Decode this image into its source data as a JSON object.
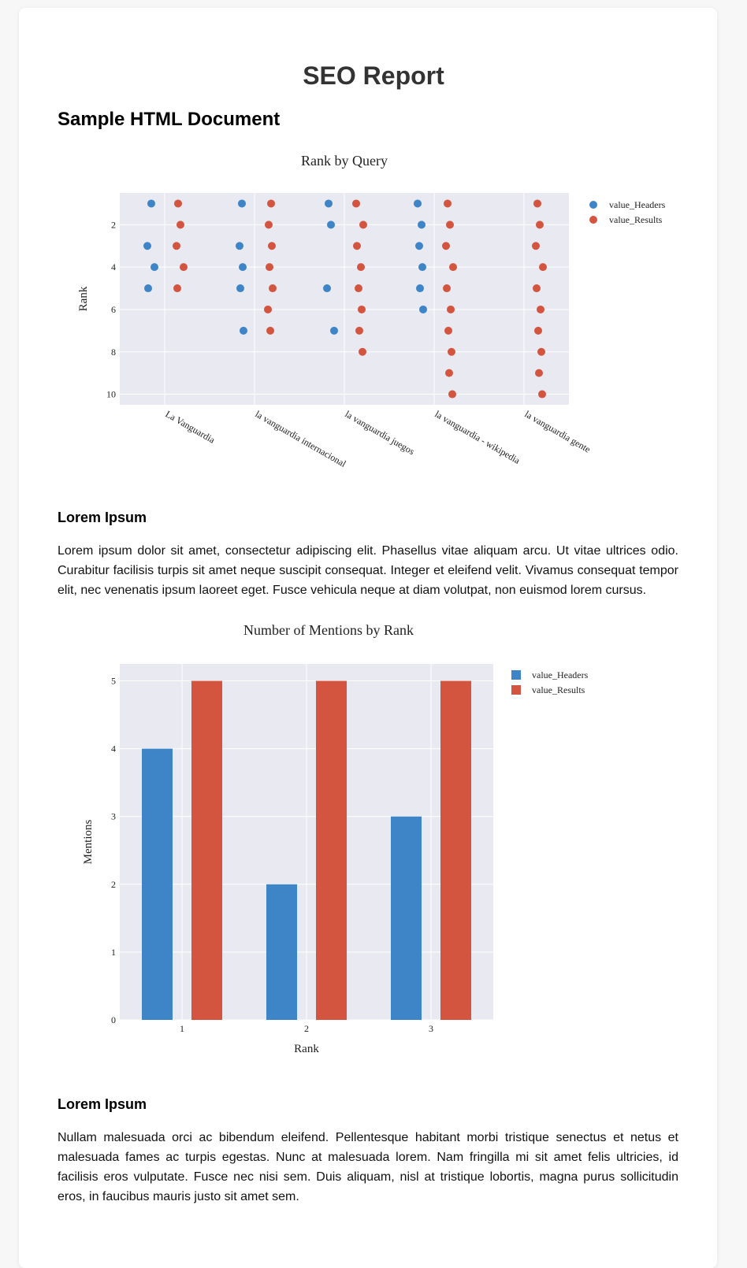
{
  "header": {
    "title": "SEO Report",
    "subtitle": "Sample HTML Document"
  },
  "chart_data": [
    {
      "type": "scatter",
      "title": "Rank by Query",
      "y_label": "Rank",
      "categories": [
        "La Vanguardia",
        "la vanguardia internacional",
        "la vanguardia juegos",
        "la vanguardia - wikipedia",
        "la vanguardia gente"
      ],
      "series": [
        {
          "name": "value_Headers",
          "color": "#3d85c6",
          "x": [
            "La Vanguardia",
            "La Vanguardia",
            "La Vanguardia",
            "La Vanguardia",
            "la vanguardia internacional",
            "la vanguardia internacional",
            "la vanguardia internacional",
            "la vanguardia internacional",
            "la vanguardia internacional",
            "la vanguardia juegos",
            "la vanguardia juegos",
            "la vanguardia juegos",
            "la vanguardia juegos",
            "la vanguardia - wikipedia",
            "la vanguardia - wikipedia",
            "la vanguardia - wikipedia",
            "la vanguardia - wikipedia",
            "la vanguardia - wikipedia",
            "la vanguardia - wikipedia"
          ],
          "values": [
            1,
            3,
            4,
            5,
            1,
            3,
            4,
            5,
            7,
            1,
            2,
            5,
            7,
            1,
            2,
            3,
            4,
            5,
            6
          ]
        },
        {
          "name": "value_Results",
          "color": "#d3553f",
          "x": [
            "La Vanguardia",
            "La Vanguardia",
            "La Vanguardia",
            "La Vanguardia",
            "La Vanguardia",
            "la vanguardia internacional",
            "la vanguardia internacional",
            "la vanguardia internacional",
            "la vanguardia internacional",
            "la vanguardia internacional",
            "la vanguardia internacional",
            "la vanguardia internacional",
            "la vanguardia juegos",
            "la vanguardia juegos",
            "la vanguardia juegos",
            "la vanguardia juegos",
            "la vanguardia juegos",
            "la vanguardia juegos",
            "la vanguardia juegos",
            "la vanguardia juegos",
            "la vanguardia - wikipedia",
            "la vanguardia - wikipedia",
            "la vanguardia - wikipedia",
            "la vanguardia - wikipedia",
            "la vanguardia - wikipedia",
            "la vanguardia - wikipedia",
            "la vanguardia - wikipedia",
            "la vanguardia - wikipedia",
            "la vanguardia - wikipedia",
            "la vanguardia - wikipedia",
            "la vanguardia gente",
            "la vanguardia gente",
            "la vanguardia gente",
            "la vanguardia gente",
            "la vanguardia gente",
            "la vanguardia gente",
            "la vanguardia gente",
            "la vanguardia gente",
            "la vanguardia gente",
            "la vanguardia gente"
          ],
          "values": [
            1,
            2,
            3,
            4,
            5,
            1,
            2,
            3,
            4,
            5,
            6,
            7,
            1,
            2,
            3,
            4,
            5,
            6,
            7,
            8,
            1,
            2,
            3,
            4,
            5,
            6,
            7,
            8,
            9,
            10,
            1,
            2,
            3,
            4,
            5,
            6,
            7,
            8,
            9,
            10
          ]
        }
      ],
      "ylim": [
        0.5,
        10.5
      ],
      "y_reversed": true,
      "yticks": [
        2,
        4,
        6,
        8,
        10
      ],
      "grid": true,
      "legend": "right"
    },
    {
      "type": "bar",
      "title": "Number of Mentions by Rank",
      "x_label": "Rank",
      "y_label": "Mentions",
      "categories": [
        "1",
        "2",
        "3"
      ],
      "series": [
        {
          "name": "value_Headers",
          "color": "#3d85c6",
          "values": [
            4,
            2,
            3
          ]
        },
        {
          "name": "value_Results",
          "color": "#d3553f",
          "values": [
            5,
            5,
            5
          ]
        }
      ],
      "ylim": [
        0,
        5.25
      ],
      "yticks": [
        0,
        1,
        2,
        3,
        4,
        5
      ],
      "grid": true,
      "legend": "right"
    }
  ],
  "sections": [
    {
      "heading": "Lorem Ipsum",
      "text": "Lorem ipsum dolor sit amet, consectetur adipiscing elit. Phasellus vitae aliquam arcu. Ut vitae ultrices odio. Curabitur facilisis turpis sit amet neque suscipit consequat. Integer et eleifend velit. Vivamus consequat tempor elit, nec venenatis ipsum laoreet eget. Fusce vehicula neque at diam volutpat, non euismod lorem cursus."
    },
    {
      "heading": "Lorem Ipsum",
      "text": "Nullam malesuada orci ac bibendum eleifend. Pellentesque habitant morbi tristique senectus et netus et malesuada fames ac turpis egestas. Nunc at malesuada lorem. Nam fringilla mi sit amet felis ultricies, id facilisis eros vulputate. Fusce nec nisi sem. Duis aliquam, nisl at tristique lobortis, magna purus sollicitudin eros, in faucibus mauris justo sit amet sem."
    }
  ]
}
